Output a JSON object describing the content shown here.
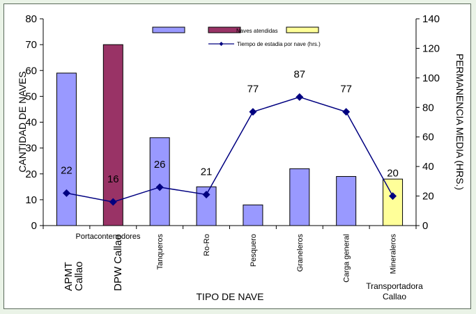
{
  "chart_data": {
    "type": "bar",
    "categories": [
      "APMT Callao",
      "DPW Callao",
      "Tanqueros",
      "Ro-Ro",
      "Pesquero",
      "Graneleros",
      "Carga general",
      "Transportadora Callao"
    ],
    "x_tick_labels": [
      "",
      "",
      "Tanqueros",
      "Ro-Ro",
      "Pesquero",
      "Graneleros",
      "Carga general",
      "Mineraleros"
    ],
    "group_label": "Portacontenedores",
    "bottom_labels": [
      "APMT\nCallao",
      "DPW Callao",
      "Transportadora\nCallao"
    ],
    "series": [
      {
        "name": "Naves atendidas",
        "type": "bar",
        "axis": "left",
        "values": [
          59,
          70,
          34,
          15,
          8,
          22,
          19,
          18
        ],
        "bar_colors": [
          "#9999ff",
          "#993366",
          "#9999ff",
          "#9999ff",
          "#9999ff",
          "#9999ff",
          "#9999ff",
          "#ffff99"
        ]
      },
      {
        "name": "Tiempo de estadia por nave (hrs.)",
        "type": "line",
        "axis": "right",
        "values": [
          22,
          16,
          26,
          21,
          77,
          87,
          77,
          20
        ],
        "color": "#000080"
      }
    ],
    "legend_entries": [
      {
        "label": "",
        "color": "#9999ff",
        "kind": "bar"
      },
      {
        "label": "Naves atendidas",
        "color": "#993366",
        "kind": "bar"
      },
      {
        "label": "",
        "color": "#ffff99",
        "kind": "bar"
      },
      {
        "label": "Tiempo de estadia por nave (hrs.)",
        "color": "#000080",
        "kind": "line"
      }
    ],
    "legend_position": "top-center",
    "xlabel": "TIPO DE NAVE",
    "ylabel": "CANTIDAD DE NAVES",
    "y2label": "PERMANENCIA  MEDIA  (HRS.)",
    "ylim": [
      0,
      80
    ],
    "yticks": [
      0,
      10,
      20,
      30,
      40,
      50,
      60,
      70,
      80
    ],
    "y2lim": [
      0,
      140
    ],
    "y2ticks": [
      0,
      20,
      40,
      60,
      80,
      100,
      120,
      140
    ],
    "grid": false
  }
}
